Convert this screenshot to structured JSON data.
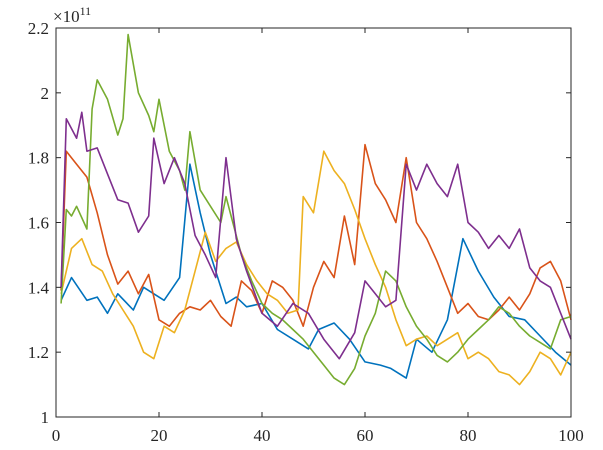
{
  "chart_data": {
    "type": "line",
    "title": "",
    "xlabel": "",
    "ylabel": "",
    "xlim": [
      0,
      100
    ],
    "ylim": [
      1.0,
      2.2
    ],
    "y_scale_multiplier": "×10",
    "y_scale_exponent": "11",
    "x_ticks": [
      0,
      20,
      40,
      60,
      80,
      100
    ],
    "x_tick_labels": [
      "0",
      "20",
      "40",
      "60",
      "80",
      "100"
    ],
    "y_ticks": [
      1.0,
      1.2,
      1.4,
      1.6,
      1.8,
      2.0,
      2.2
    ],
    "y_tick_labels": [
      "1",
      "1.2",
      "1.4",
      "1.6",
      "1.8",
      "2",
      "2.2"
    ],
    "grid": false,
    "legend": "none",
    "box": true,
    "series": [
      {
        "color": "#0072BD",
        "x": [
          1,
          3,
          6,
          8,
          10,
          12,
          15,
          17,
          19,
          21,
          24,
          26,
          28,
          30,
          33,
          35,
          37,
          40,
          43,
          46,
          49,
          51,
          54,
          57,
          60,
          63,
          65,
          68,
          70,
          73,
          76,
          79,
          82,
          85,
          88,
          91,
          94,
          97,
          100
        ],
        "y": [
          1.36,
          1.43,
          1.36,
          1.37,
          1.32,
          1.38,
          1.33,
          1.4,
          1.38,
          1.36,
          1.43,
          1.78,
          1.63,
          1.5,
          1.35,
          1.37,
          1.34,
          1.35,
          1.27,
          1.24,
          1.21,
          1.27,
          1.29,
          1.24,
          1.17,
          1.16,
          1.15,
          1.12,
          1.24,
          1.2,
          1.3,
          1.55,
          1.45,
          1.37,
          1.31,
          1.3,
          1.25,
          1.2,
          1.16
        ]
      },
      {
        "color": "#D95319",
        "x": [
          1,
          2,
          4,
          6,
          8,
          10,
          12,
          14,
          16,
          18,
          20,
          22,
          24,
          26,
          28,
          30,
          32,
          34,
          36,
          38,
          40,
          42,
          44,
          46,
          48,
          50,
          52,
          54,
          56,
          58,
          60,
          62,
          64,
          66,
          68,
          70,
          72,
          74,
          76,
          78,
          80,
          82,
          84,
          86,
          88,
          90,
          92,
          94,
          96,
          98,
          100
        ],
        "y": [
          1.39,
          1.82,
          1.78,
          1.74,
          1.63,
          1.5,
          1.41,
          1.45,
          1.38,
          1.44,
          1.3,
          1.28,
          1.32,
          1.34,
          1.33,
          1.36,
          1.31,
          1.28,
          1.42,
          1.39,
          1.32,
          1.42,
          1.4,
          1.36,
          1.28,
          1.4,
          1.48,
          1.43,
          1.62,
          1.47,
          1.84,
          1.72,
          1.67,
          1.6,
          1.8,
          1.6,
          1.55,
          1.48,
          1.4,
          1.32,
          1.35,
          1.31,
          1.3,
          1.33,
          1.37,
          1.33,
          1.38,
          1.46,
          1.48,
          1.42,
          1.3
        ]
      },
      {
        "color": "#EDB120",
        "x": [
          1,
          3,
          5,
          7,
          9,
          11,
          13,
          15,
          17,
          19,
          21,
          23,
          25,
          27,
          29,
          31,
          33,
          35,
          37,
          39,
          41,
          43,
          45,
          47,
          48,
          50,
          52,
          54,
          56,
          58,
          60,
          62,
          64,
          66,
          68,
          70,
          72,
          74,
          76,
          78,
          80,
          82,
          84,
          86,
          88,
          90,
          92,
          94,
          96,
          98,
          100
        ],
        "y": [
          1.38,
          1.52,
          1.55,
          1.47,
          1.45,
          1.38,
          1.33,
          1.28,
          1.2,
          1.18,
          1.28,
          1.26,
          1.33,
          1.45,
          1.57,
          1.48,
          1.52,
          1.54,
          1.47,
          1.42,
          1.38,
          1.36,
          1.32,
          1.33,
          1.68,
          1.63,
          1.82,
          1.76,
          1.72,
          1.64,
          1.55,
          1.47,
          1.4,
          1.3,
          1.22,
          1.24,
          1.25,
          1.22,
          1.24,
          1.26,
          1.18,
          1.2,
          1.18,
          1.14,
          1.13,
          1.1,
          1.14,
          1.2,
          1.18,
          1.13,
          1.2
        ]
      },
      {
        "color": "#77AC30",
        "x": [
          1,
          2,
          3,
          4,
          6,
          7,
          8,
          10,
          12,
          13,
          14,
          16,
          18,
          19,
          20,
          22,
          24,
          25,
          26,
          28,
          30,
          32,
          33,
          34,
          36,
          38,
          40,
          42,
          44,
          46,
          48,
          50,
          52,
          54,
          56,
          58,
          60,
          62,
          64,
          66,
          68,
          70,
          72,
          74,
          76,
          78,
          80,
          82,
          84,
          86,
          88,
          90,
          92,
          94,
          96,
          98,
          100
        ],
        "y": [
          1.35,
          1.64,
          1.62,
          1.65,
          1.58,
          1.95,
          2.04,
          1.98,
          1.87,
          1.92,
          2.18,
          2.0,
          1.93,
          1.88,
          1.98,
          1.82,
          1.76,
          1.7,
          1.88,
          1.7,
          1.65,
          1.6,
          1.68,
          1.62,
          1.5,
          1.42,
          1.35,
          1.32,
          1.3,
          1.27,
          1.24,
          1.2,
          1.16,
          1.12,
          1.1,
          1.15,
          1.25,
          1.32,
          1.45,
          1.42,
          1.34,
          1.28,
          1.24,
          1.19,
          1.17,
          1.2,
          1.24,
          1.27,
          1.3,
          1.34,
          1.32,
          1.28,
          1.25,
          1.23,
          1.21,
          1.3,
          1.31
        ]
      },
      {
        "color": "#7E2F8E",
        "x": [
          1,
          2,
          4,
          5,
          6,
          8,
          10,
          12,
          14,
          16,
          18,
          19,
          21,
          23,
          25,
          27,
          29,
          31,
          33,
          35,
          37,
          40,
          43,
          46,
          49,
          52,
          55,
          58,
          60,
          62,
          64,
          66,
          68,
          70,
          72,
          74,
          76,
          78,
          80,
          82,
          84,
          86,
          88,
          90,
          92,
          94,
          96,
          98,
          100
        ],
        "y": [
          1.4,
          1.92,
          1.86,
          1.94,
          1.82,
          1.83,
          1.75,
          1.67,
          1.66,
          1.57,
          1.62,
          1.86,
          1.72,
          1.8,
          1.72,
          1.56,
          1.5,
          1.43,
          1.8,
          1.55,
          1.45,
          1.32,
          1.28,
          1.35,
          1.32,
          1.24,
          1.18,
          1.26,
          1.42,
          1.38,
          1.34,
          1.36,
          1.78,
          1.7,
          1.78,
          1.72,
          1.68,
          1.78,
          1.6,
          1.57,
          1.52,
          1.56,
          1.52,
          1.58,
          1.46,
          1.42,
          1.4,
          1.32,
          1.24
        ]
      }
    ]
  }
}
